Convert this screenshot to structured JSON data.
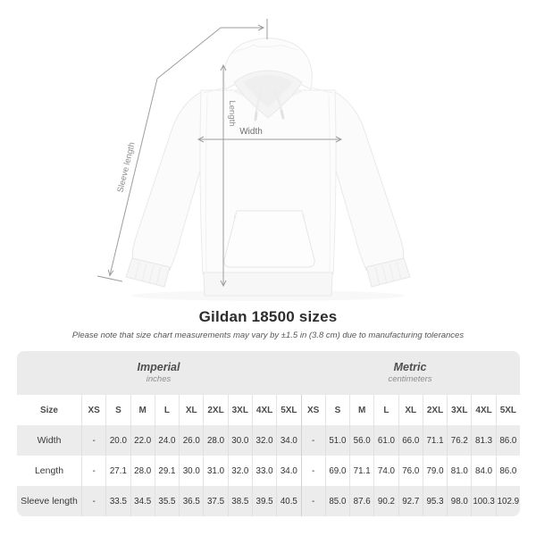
{
  "diagram": {
    "labels": {
      "sleeve_length": "Sleeve length",
      "length": "Length",
      "width": "Width"
    }
  },
  "title": "Gildan 18500 sizes",
  "subtitle": "Please note that size chart measurements may vary by ±1.5 in (3.8 cm) due to manufacturing tolerances",
  "table": {
    "sections": [
      {
        "label": "Imperial",
        "sublabel": "inches"
      },
      {
        "label": "Metric",
        "sublabel": "centimeters"
      }
    ],
    "size_header": "Size",
    "sizes": [
      "XS",
      "S",
      "M",
      "L",
      "XL",
      "2XL",
      "3XL",
      "4XL",
      "5XL"
    ],
    "rows": [
      {
        "label": "Width",
        "imperial": [
          "-",
          "20.0",
          "22.0",
          "24.0",
          "26.0",
          "28.0",
          "30.0",
          "32.0",
          "34.0"
        ],
        "metric": [
          "-",
          "51.0",
          "56.0",
          "61.0",
          "66.0",
          "71.1",
          "76.2",
          "81.3",
          "86.0"
        ]
      },
      {
        "label": "Length",
        "imperial": [
          "-",
          "27.1",
          "28.0",
          "29.1",
          "30.0",
          "31.0",
          "32.0",
          "33.0",
          "34.0"
        ],
        "metric": [
          "-",
          "69.0",
          "71.1",
          "74.0",
          "76.0",
          "79.0",
          "81.0",
          "84.0",
          "86.0"
        ]
      },
      {
        "label": "Sleeve length",
        "imperial": [
          "-",
          "33.5",
          "34.5",
          "35.5",
          "36.5",
          "37.5",
          "38.5",
          "39.5",
          "40.5"
        ],
        "metric": [
          "-",
          "85.0",
          "87.6",
          "90.2",
          "92.7",
          "95.3",
          "98.0",
          "100.3",
          "102.9"
        ]
      }
    ]
  },
  "colors": {
    "band_background": "#ebebeb",
    "row_alt_background": "#ececec",
    "grid_line": "#e4e4e4",
    "section_divider": "#d2d2d2",
    "measure_line": "#9d9d9d",
    "measure_label": "#8d8d8d",
    "title_text": "#2d2d2d",
    "value_text": "#333333"
  }
}
